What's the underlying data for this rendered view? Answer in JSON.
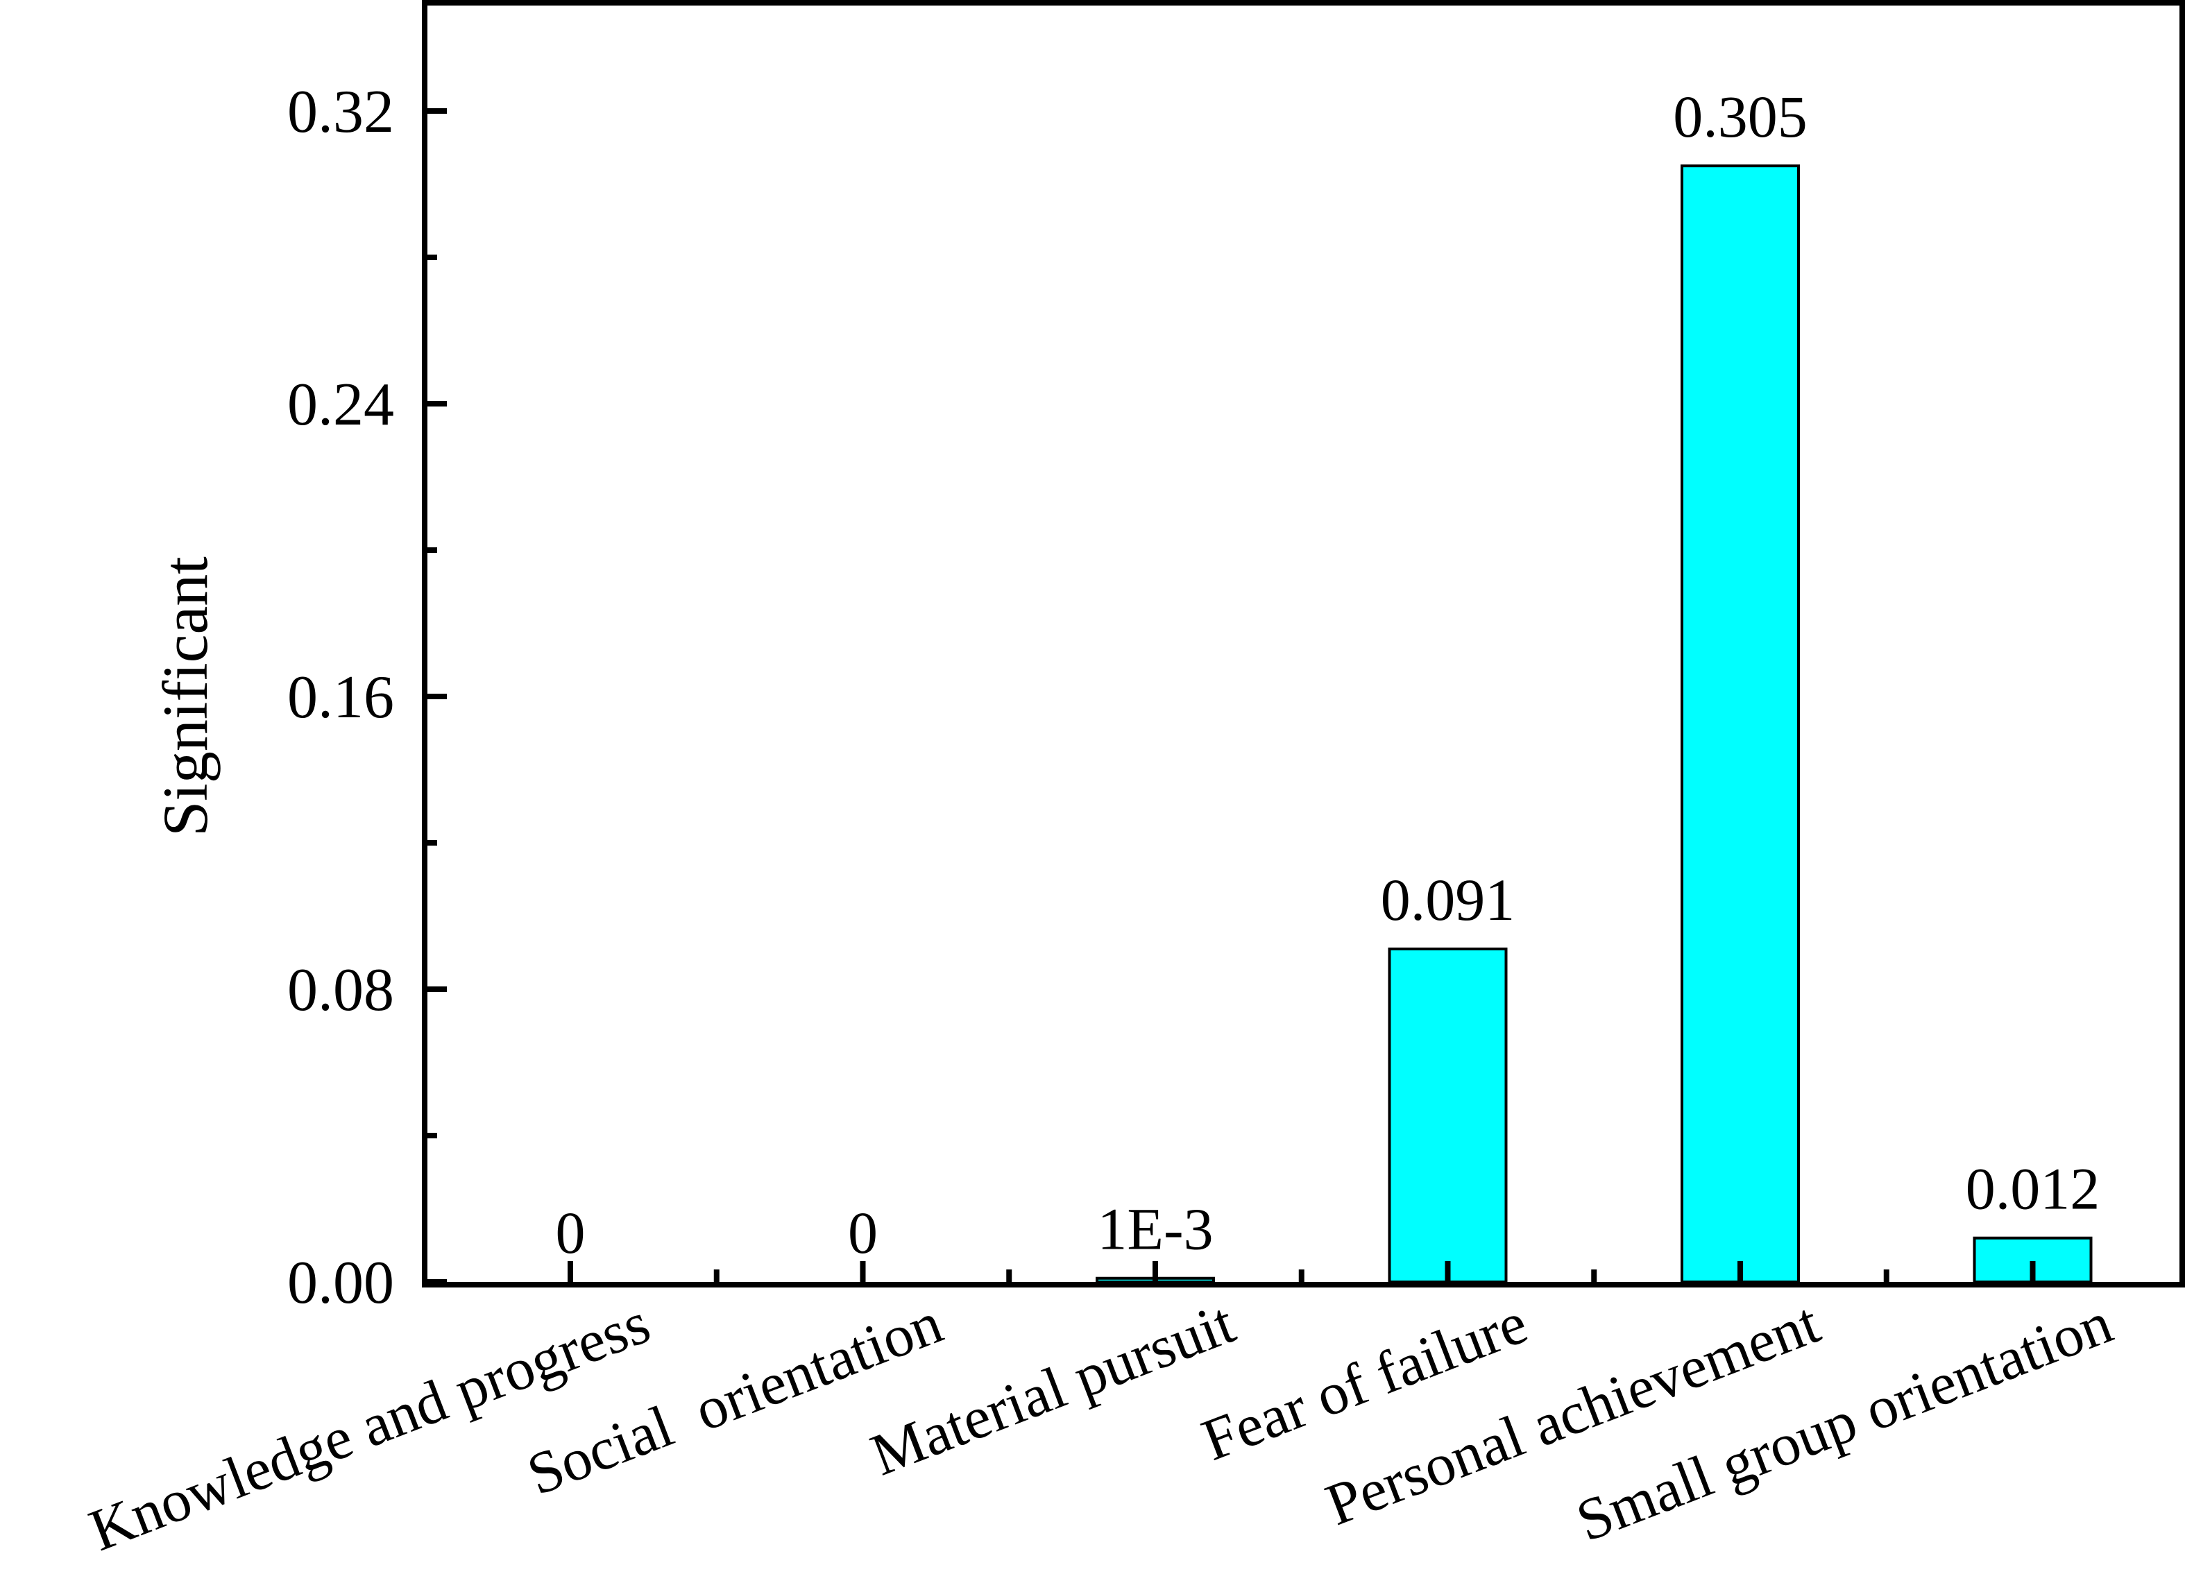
{
  "chart_data": {
    "type": "bar",
    "title": "",
    "xlabel": "",
    "ylabel": "Significant",
    "categories": [
      "Knowledge and progress",
      "Social  orientation",
      "Material pursuit",
      "Fear of failure",
      "Personal achievement",
      "Small group orientation"
    ],
    "values": [
      0,
      0,
      0.001,
      0.091,
      0.305,
      0.012
    ],
    "data_labels": [
      "0",
      "0",
      "1E-3",
      "0.091",
      "0.305",
      "0.012"
    ],
    "y_ticks": [
      "0.00",
      "0.08",
      "0.16",
      "0.24",
      "0.32"
    ],
    "y_tick_values": [
      0,
      0.08,
      0.16,
      0.24,
      0.32
    ],
    "ylim": [
      0,
      0.35
    ],
    "grid": false,
    "legend": "none",
    "bar_color": "#00ffff",
    "edge_color": "#000000"
  }
}
